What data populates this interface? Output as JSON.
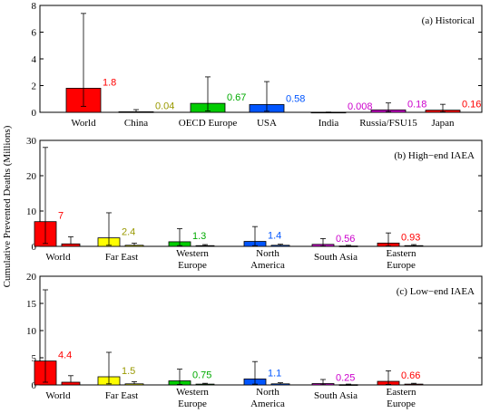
{
  "ylabel": "Cumulative Prevented Deaths (Millions)",
  "chart_data": [
    {
      "type": "bar",
      "title": "(a) Historical",
      "ylim": [
        0,
        8
      ],
      "yticks": [
        0,
        2,
        4,
        6,
        8
      ],
      "categories": [
        "World",
        "China",
        "OECD Europe",
        "USA",
        "India",
        "Russia/FSU15",
        "Japan"
      ],
      "values": [
        1.8,
        0.04,
        0.67,
        0.58,
        0.008,
        0.18,
        0.16
      ],
      "value_labels": [
        "1.8",
        "0.04",
        "0.67",
        "0.58",
        "0.008",
        "0.18",
        "0.16"
      ],
      "err_low": [
        0.45,
        0.0,
        0.1,
        0.08,
        0.0,
        0.05,
        0.04
      ],
      "err_high": [
        7.4,
        0.2,
        2.65,
        2.3,
        0.02,
        0.7,
        0.6
      ],
      "colors": [
        "#ff0000",
        "#ffff00",
        "#00cc00",
        "#0055ff",
        "#cc00cc",
        "#cc00cc",
        "#ff0000"
      ],
      "label_colors": [
        "#ff0000",
        "#999900",
        "#00aa00",
        "#0055ff",
        "#cc00cc",
        "#cc00cc",
        "#ff0000"
      ]
    },
    {
      "type": "bar",
      "title": "(b) High−end IAEA",
      "ylim": [
        0,
        30
      ],
      "yticks": [
        0,
        10,
        20,
        30
      ],
      "categories": [
        "World",
        "Far East",
        "Western Europe",
        "North America",
        "South Asia",
        "Eastern Europe"
      ],
      "values": [
        7,
        2.4,
        1.3,
        1.4,
        0.56,
        0.93
      ],
      "secondary_values": [
        0.7,
        0.3,
        0.2,
        0.3,
        0.1,
        0.2
      ],
      "value_labels": [
        "7",
        "2.4",
        "1.3",
        "1.4",
        "0.56",
        "0.93"
      ],
      "err_low": [
        0.8,
        0.3,
        0.2,
        0.2,
        0.1,
        0.1
      ],
      "err_high": [
        28,
        9.5,
        5.0,
        5.6,
        2.2,
        3.8
      ],
      "sec_err_high": [
        2.7,
        0.9,
        0.5,
        0.6,
        0.3,
        0.5
      ],
      "colors": [
        "#ff0000",
        "#ffff00",
        "#00cc00",
        "#0055ff",
        "#cc00cc",
        "#ff0000"
      ],
      "label_colors": [
        "#ff0000",
        "#999900",
        "#00aa00",
        "#0055ff",
        "#cc00cc",
        "#ff0000"
      ]
    },
    {
      "type": "bar",
      "title": "(c) Low−end IAEA",
      "ylim": [
        0,
        20
      ],
      "yticks": [
        0,
        5,
        10,
        15,
        20
      ],
      "categories": [
        "World",
        "Far East",
        "Western Europe",
        "North America",
        "South Asia",
        "Eastern Europe"
      ],
      "values": [
        4.4,
        1.5,
        0.75,
        1.1,
        0.25,
        0.66
      ],
      "secondary_values": [
        0.5,
        0.2,
        0.15,
        0.2,
        0.05,
        0.15
      ],
      "value_labels": [
        "4.4",
        "1.5",
        "0.75",
        "1.1",
        "0.25",
        "0.66"
      ],
      "err_low": [
        0.5,
        0.2,
        0.1,
        0.15,
        0.05,
        0.1
      ],
      "err_high": [
        17.5,
        6.0,
        2.9,
        4.3,
        1.0,
        2.6
      ],
      "sec_err_high": [
        1.7,
        0.6,
        0.3,
        0.4,
        0.15,
        0.3
      ],
      "colors": [
        "#ff0000",
        "#ffff00",
        "#00cc00",
        "#0055ff",
        "#cc00cc",
        "#ff0000"
      ],
      "label_colors": [
        "#ff0000",
        "#999900",
        "#00aa00",
        "#0055ff",
        "#cc00cc",
        "#ff0000"
      ]
    }
  ]
}
